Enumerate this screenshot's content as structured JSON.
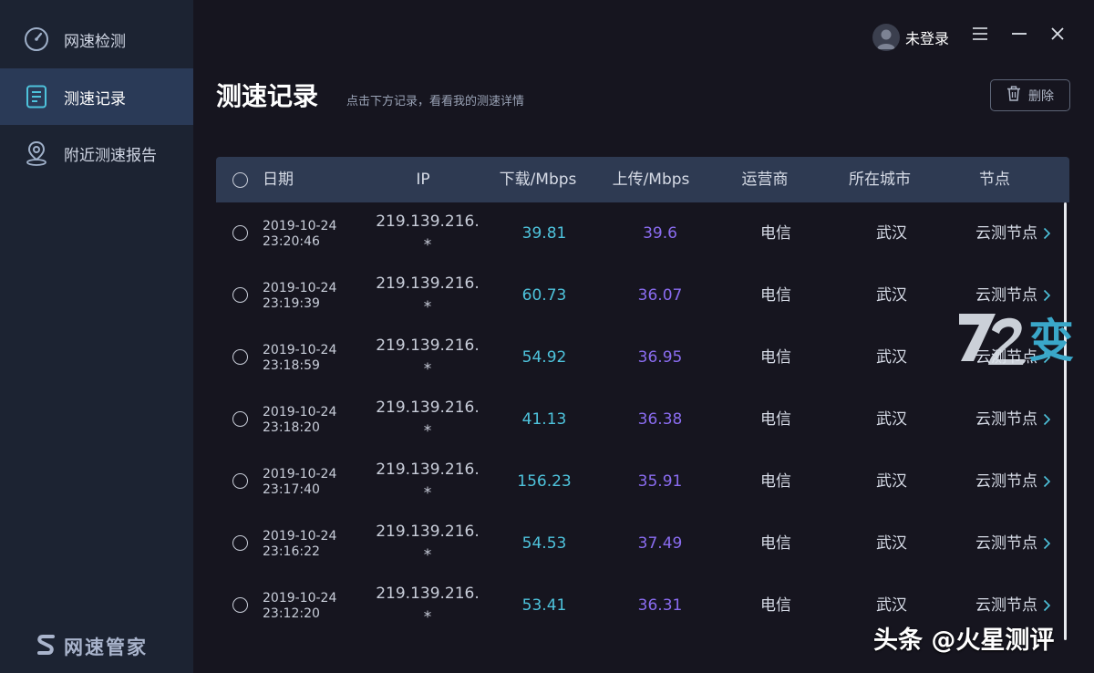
{
  "sidebar": {
    "items": [
      {
        "label": "网速检测",
        "icon": "speedometer-icon",
        "active": false
      },
      {
        "label": "测速记录",
        "icon": "document-icon",
        "active": true
      },
      {
        "label": "附近测速报告",
        "icon": "location-pin-icon",
        "active": false
      }
    ],
    "brand": "网速管家"
  },
  "topbar": {
    "user_name": "未登录",
    "icons": [
      "avatar",
      "menu-icon",
      "minimize-icon",
      "close-icon"
    ]
  },
  "header": {
    "title": "测速记录",
    "subtitle": "点击下方记录，看看我的测速详情",
    "delete_label": "删除"
  },
  "table": {
    "columns": [
      "日期",
      "IP",
      "下载/Mbps",
      "上传/Mbps",
      "运营商",
      "所在城市",
      "节点"
    ],
    "rows": [
      {
        "date": "2019-10-24",
        "time": "23:20:46",
        "ip": "219.139.216.",
        "ip2": "*",
        "down": "39.81",
        "up": "39.6",
        "isp": "电信",
        "city": "武汉",
        "node": "云测节点"
      },
      {
        "date": "2019-10-24",
        "time": "23:19:39",
        "ip": "219.139.216.",
        "ip2": "*",
        "down": "60.73",
        "up": "36.07",
        "isp": "电信",
        "city": "武汉",
        "node": "云测节点"
      },
      {
        "date": "2019-10-24",
        "time": "23:18:59",
        "ip": "219.139.216.",
        "ip2": "*",
        "down": "54.92",
        "up": "36.95",
        "isp": "电信",
        "city": "武汉",
        "node": "云测节点"
      },
      {
        "date": "2019-10-24",
        "time": "23:18:20",
        "ip": "219.139.216.",
        "ip2": "*",
        "down": "41.13",
        "up": "36.38",
        "isp": "电信",
        "city": "武汉",
        "node": "云测节点"
      },
      {
        "date": "2019-10-24",
        "time": "23:17:40",
        "ip": "219.139.216.",
        "ip2": "*",
        "down": "156.23",
        "up": "35.91",
        "isp": "电信",
        "city": "武汉",
        "node": "云测节点"
      },
      {
        "date": "2019-10-24",
        "time": "23:16:22",
        "ip": "219.139.216.",
        "ip2": "*",
        "down": "54.53",
        "up": "37.49",
        "isp": "电信",
        "city": "武汉",
        "node": "云测节点"
      },
      {
        "date": "2019-10-24",
        "time": "23:12:20",
        "ip": "219.139.216.",
        "ip2": "*",
        "down": "53.41",
        "up": "36.31",
        "isp": "电信",
        "city": "武汉",
        "node": "云测节点"
      }
    ]
  },
  "colors": {
    "download": "#4ec3dc",
    "upload": "#8a6cf0",
    "sidebar_bg": "#1c2332",
    "active_bg": "#2a3a57",
    "header_bg": "#2e3a52"
  },
  "overlay": {
    "logo_text": "变",
    "watermark": "头条 @火星测评"
  }
}
